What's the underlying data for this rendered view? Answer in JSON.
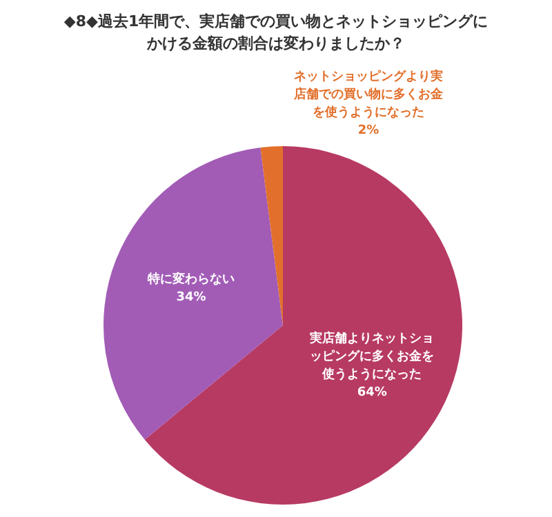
{
  "chart_data": {
    "type": "pie",
    "title": "◆8◆過去1年間で、実店舗での買い物とネットショッピングにかける金額の割合は変わりましたか？",
    "categories": [
      "実店舗よりネットショッピングに多くお金を使うようになった",
      "特に変わらない",
      "ネットショッピングより実店舗での買い物に多くお金を使うようになった"
    ],
    "values": [
      64,
      34,
      2
    ],
    "colors": [
      "#b73a63",
      "#a25cb6",
      "#e2702c"
    ],
    "value_labels": [
      "64%",
      "34%",
      "2%"
    ]
  }
}
